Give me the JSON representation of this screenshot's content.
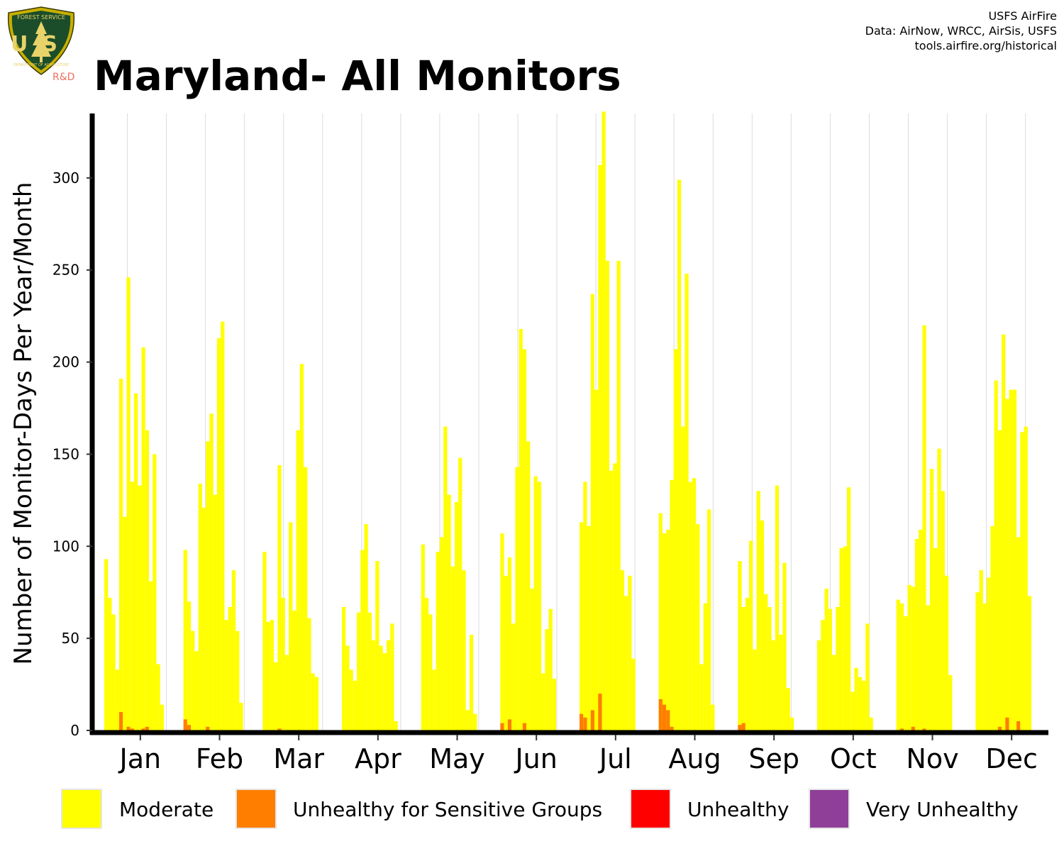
{
  "logo": {
    "top_text": "FOREST SERVICE",
    "main_text": "US",
    "bottom_text": "DEPARTMENT OF AGRICULTURE",
    "suffix": "R&D"
  },
  "source": {
    "line1": "USFS AirFire",
    "line2": "Data: AirNow, WRCC, AirSis, USFS",
    "line3": "tools.airfire.org/historical"
  },
  "chart_data": {
    "type": "bar",
    "title": "Maryland- All Monitors",
    "ylabel": "Number of Monitor-Days Per Year/Month",
    "xlabel": "",
    "ylim": [
      0,
      335
    ],
    "yticks": [
      0,
      50,
      100,
      150,
      200,
      250,
      300
    ],
    "categories": [
      "Jan",
      "Feb",
      "Mar",
      "Apr",
      "May",
      "Jun",
      "Jul",
      "Aug",
      "Sep",
      "Oct",
      "Nov",
      "Dec"
    ],
    "bars_per_month": 18,
    "grid": "vertical",
    "legend_position": "bottom",
    "colors": {
      "Moderate": "#ffff00",
      "Unhealthy for Sensitive Groups": "#ff7e00",
      "Unhealthy": "#ff0000",
      "Very Unhealthy": "#8f3f97"
    },
    "legend": [
      "Moderate",
      "Unhealthy for Sensitive Groups",
      "Unhealthy",
      "Very Unhealthy"
    ],
    "series": [
      {
        "name": "Moderate",
        "values": [
          [
            93,
            72,
            63,
            33,
            191,
            116,
            246,
            135,
            183,
            133,
            208,
            163,
            81,
            150,
            36,
            14,
            0,
            0
          ],
          [
            98,
            70,
            54,
            43,
            134,
            121,
            157,
            172,
            128,
            213,
            222,
            60,
            67,
            87,
            54,
            15,
            0,
            0
          ],
          [
            97,
            59,
            60,
            37,
            144,
            72,
            41,
            113,
            65,
            163,
            199,
            143,
            61,
            31,
            29,
            0,
            0,
            0
          ],
          [
            67,
            46,
            33,
            27,
            64,
            98,
            112,
            64,
            49,
            92,
            46,
            42,
            49,
            58,
            5,
            0,
            0,
            0
          ],
          [
            101,
            72,
            63,
            33,
            97,
            105,
            165,
            128,
            89,
            124,
            148,
            87,
            11,
            52,
            9,
            0,
            0,
            0
          ],
          [
            107,
            84,
            94,
            58,
            143,
            218,
            207,
            157,
            77,
            138,
            135,
            31,
            55,
            66,
            28,
            0,
            0,
            0
          ],
          [
            113,
            135,
            111,
            237,
            185,
            307,
            336,
            255,
            141,
            145,
            255,
            87,
            73,
            84,
            39,
            0,
            0,
            0
          ],
          [
            118,
            107,
            109,
            136,
            207,
            299,
            165,
            248,
            135,
            137,
            112,
            36,
            69,
            120,
            14,
            0,
            0,
            0
          ],
          [
            92,
            67,
            72,
            103,
            44,
            130,
            114,
            74,
            67,
            49,
            133,
            52,
            91,
            23,
            7,
            0,
            0,
            0
          ],
          [
            49,
            60,
            77,
            66,
            41,
            67,
            99,
            100,
            132,
            21,
            34,
            29,
            27,
            58,
            7,
            0,
            0,
            0
          ],
          [
            71,
            69,
            62,
            79,
            78,
            104,
            109,
            220,
            68,
            142,
            99,
            153,
            130,
            84,
            30,
            0,
            0,
            0
          ],
          [
            75,
            87,
            69,
            83,
            111,
            190,
            163,
            215,
            180,
            185,
            185,
            105,
            162,
            165,
            73,
            0,
            0,
            0
          ]
        ]
      },
      {
        "name": "Unhealthy for Sensitive Groups",
        "values": [
          [
            0,
            0,
            0,
            0,
            10,
            0,
            2,
            1,
            0,
            0,
            1,
            2,
            0,
            0,
            0,
            0,
            0,
            0
          ],
          [
            6,
            3,
            0,
            0,
            0,
            0,
            2,
            0,
            0,
            0,
            0,
            0,
            0,
            0,
            0,
            0,
            0,
            0
          ],
          [
            0,
            0,
            0,
            0,
            1,
            0,
            0,
            0,
            0,
            0,
            0,
            0,
            0,
            0,
            0,
            0,
            0,
            0
          ],
          [
            0,
            0,
            0,
            0,
            0,
            0,
            0,
            0,
            0,
            0,
            0,
            0,
            0,
            0,
            0,
            0,
            0,
            0
          ],
          [
            0,
            0,
            0,
            0,
            0,
            0,
            0,
            0,
            0,
            0,
            0,
            0,
            0,
            0,
            0,
            0,
            0,
            0
          ],
          [
            4,
            0,
            6,
            0,
            0,
            0,
            4,
            0,
            0,
            0,
            0,
            0,
            0,
            0,
            0,
            0,
            0,
            0
          ],
          [
            9,
            7,
            0,
            11,
            0,
            20,
            0,
            0,
            0,
            0,
            0,
            0,
            0,
            0,
            0,
            0,
            0,
            0
          ],
          [
            17,
            14,
            11,
            2,
            0,
            0,
            0,
            0,
            0,
            0,
            0,
            0,
            0,
            0,
            0,
            0,
            0,
            0
          ],
          [
            3,
            4,
            0,
            0,
            0,
            0,
            0,
            0,
            0,
            0,
            0,
            0,
            0,
            0,
            0,
            0,
            0,
            0
          ],
          [
            0,
            0,
            0,
            0,
            0,
            0,
            0,
            0,
            0,
            0,
            0,
            0,
            0,
            0,
            0,
            0,
            0,
            0
          ],
          [
            0,
            1,
            0,
            0,
            2,
            0,
            0,
            1,
            0,
            0,
            0,
            0,
            0,
            0,
            0,
            0,
            0,
            0
          ],
          [
            0,
            0,
            0,
            0,
            0,
            0,
            2,
            0,
            7,
            0,
            0,
            5,
            0,
            0,
            0,
            0,
            0,
            0
          ]
        ]
      },
      {
        "name": "Unhealthy",
        "values": [
          [
            0,
            0,
            0,
            0,
            0,
            0,
            0,
            0,
            0,
            0,
            0,
            0,
            0,
            0,
            0,
            0,
            0,
            0
          ],
          [
            0,
            0,
            0,
            0,
            0,
            0,
            0,
            0,
            0,
            0,
            0,
            0,
            0,
            0,
            0,
            0,
            0,
            0
          ],
          [
            0,
            0,
            0,
            0,
            0,
            0,
            0,
            0,
            0,
            0,
            0,
            0,
            0,
            0,
            0,
            0,
            0,
            0
          ],
          [
            0,
            0,
            0,
            0,
            0,
            0,
            0,
            0,
            0,
            0,
            0,
            0,
            0,
            0,
            0,
            0,
            0,
            0
          ],
          [
            0,
            0,
            0,
            0,
            0,
            0,
            0,
            0,
            0,
            0,
            0,
            0,
            0,
            0,
            0,
            0,
            0,
            0
          ],
          [
            0,
            0,
            0,
            0,
            0,
            0,
            0,
            0,
            0,
            0,
            0,
            0,
            0,
            0,
            0,
            0,
            0,
            0
          ],
          [
            0,
            0,
            0,
            0,
            0,
            0,
            0,
            0,
            0,
            0,
            0,
            0,
            0,
            0,
            0,
            0,
            0,
            0
          ],
          [
            0,
            0,
            0,
            0,
            0,
            0,
            0,
            0,
            0,
            0,
            0,
            0,
            0,
            0,
            0,
            0,
            0,
            0
          ],
          [
            0,
            0,
            0,
            0,
            0,
            0,
            0,
            0,
            0,
            0,
            0,
            0,
            0,
            0,
            0,
            0,
            0,
            0
          ],
          [
            0,
            0,
            0,
            0,
            0,
            0,
            0,
            0,
            0,
            0,
            0,
            0,
            0,
            0,
            0,
            0,
            0,
            0
          ],
          [
            0,
            0,
            0,
            0,
            0,
            0,
            0,
            0,
            0,
            0,
            0,
            0,
            0,
            0,
            0,
            0,
            0,
            0
          ],
          [
            0,
            0,
            0,
            0,
            0,
            0,
            0,
            0,
            0,
            0,
            0,
            0,
            0,
            0,
            0,
            0,
            0,
            0
          ]
        ]
      },
      {
        "name": "Very Unhealthy",
        "values": [
          [
            0,
            0,
            0,
            0,
            0,
            0,
            0,
            0,
            0,
            0,
            0,
            0,
            0,
            0,
            0,
            0,
            0,
            0
          ],
          [
            0,
            0,
            0,
            0,
            0,
            0,
            0,
            0,
            0,
            0,
            0,
            0,
            0,
            0,
            0,
            0,
            0,
            0
          ],
          [
            0,
            0,
            0,
            0,
            0,
            0,
            0,
            0,
            0,
            0,
            0,
            0,
            0,
            0,
            0,
            0,
            0,
            0
          ],
          [
            0,
            0,
            0,
            0,
            0,
            0,
            0,
            0,
            0,
            0,
            0,
            0,
            0,
            0,
            0,
            0,
            0,
            0
          ],
          [
            0,
            0,
            0,
            0,
            0,
            0,
            0,
            0,
            0,
            0,
            0,
            0,
            0,
            0,
            0,
            0,
            0,
            0
          ],
          [
            0,
            0,
            0,
            0,
            0,
            0,
            0,
            0,
            0,
            0,
            0,
            0,
            0,
            0,
            0,
            0,
            0,
            0
          ],
          [
            0,
            0,
            0,
            0,
            0,
            0,
            0,
            0,
            0,
            0,
            0,
            0,
            0,
            0,
            0,
            0,
            0,
            0
          ],
          [
            0,
            0,
            0,
            0,
            0,
            0,
            0,
            0,
            0,
            0,
            0,
            0,
            0,
            0,
            0,
            0,
            0,
            0
          ],
          [
            0,
            0,
            0,
            0,
            0,
            0,
            0,
            0,
            0,
            0,
            0,
            0,
            0,
            0,
            0,
            0,
            0,
            0
          ],
          [
            0,
            0,
            0,
            0,
            0,
            0,
            0,
            0,
            0,
            0,
            0,
            0,
            0,
            0,
            0,
            0,
            0,
            0
          ],
          [
            0,
            0,
            0,
            0,
            0,
            0,
            0,
            0,
            0,
            0,
            0,
            0,
            0,
            0,
            0,
            0,
            0,
            0
          ],
          [
            0,
            0,
            0,
            0,
            0,
            0,
            0,
            0,
            0,
            0,
            0,
            0,
            0,
            0,
            0,
            0,
            0,
            0
          ]
        ]
      }
    ]
  }
}
